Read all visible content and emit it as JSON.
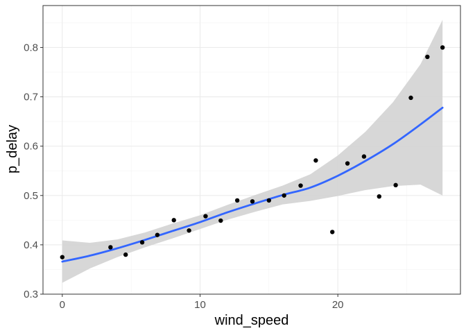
{
  "chart_data": {
    "type": "scatter",
    "title": "",
    "xlabel": "wind_speed",
    "ylabel": "p_delay",
    "xlim": [
      -1.4,
      28.9
    ],
    "ylim": [
      0.3,
      0.885
    ],
    "x_ticks": [
      0,
      10,
      20
    ],
    "x_tick_labels": [
      "0",
      "10",
      "20"
    ],
    "y_ticks": [
      0.3,
      0.4,
      0.5,
      0.6,
      0.7,
      0.8
    ],
    "y_tick_labels": [
      "0.3",
      "0.4",
      "0.5",
      "0.6",
      "0.7",
      "0.8"
    ],
    "grid": true,
    "legend": "none",
    "colors": {
      "points": "#000000",
      "smooth_line": "#3366ff",
      "confidence_band": "#d3d3d3",
      "grid_major": "#ebebeb",
      "grid_minor": "#f3f3f3",
      "panel_border": "#333333"
    },
    "points": [
      {
        "x": 0.0,
        "y": 0.375
      },
      {
        "x": 3.5,
        "y": 0.395
      },
      {
        "x": 4.6,
        "y": 0.38
      },
      {
        "x": 5.8,
        "y": 0.405
      },
      {
        "x": 6.9,
        "y": 0.42
      },
      {
        "x": 8.1,
        "y": 0.45
      },
      {
        "x": 9.2,
        "y": 0.429
      },
      {
        "x": 10.4,
        "y": 0.458
      },
      {
        "x": 11.5,
        "y": 0.449
      },
      {
        "x": 12.7,
        "y": 0.49
      },
      {
        "x": 13.8,
        "y": 0.488
      },
      {
        "x": 15.0,
        "y": 0.49
      },
      {
        "x": 16.1,
        "y": 0.5
      },
      {
        "x": 17.3,
        "y": 0.52
      },
      {
        "x": 18.4,
        "y": 0.571
      },
      {
        "x": 19.6,
        "y": 0.426
      },
      {
        "x": 20.7,
        "y": 0.565
      },
      {
        "x": 21.9,
        "y": 0.579
      },
      {
        "x": 23.0,
        "y": 0.498
      },
      {
        "x": 24.2,
        "y": 0.521
      },
      {
        "x": 25.3,
        "y": 0.698
      },
      {
        "x": 26.5,
        "y": 0.781
      },
      {
        "x": 27.6,
        "y": 0.8
      }
    ],
    "smooth": {
      "method": "loess",
      "x": [
        0.0,
        2.0,
        4.0,
        6.0,
        8.0,
        10.0,
        12.0,
        14.0,
        16.0,
        18.0,
        20.0,
        22.0,
        24.0,
        26.0,
        27.6
      ],
      "y": [
        0.366,
        0.378,
        0.393,
        0.41,
        0.428,
        0.446,
        0.466,
        0.484,
        0.501,
        0.516,
        0.54,
        0.57,
        0.604,
        0.644,
        0.678
      ],
      "lower": [
        0.323,
        0.352,
        0.375,
        0.395,
        0.413,
        0.432,
        0.451,
        0.467,
        0.482,
        0.489,
        0.499,
        0.511,
        0.519,
        0.522,
        0.5
      ],
      "upper": [
        0.409,
        0.404,
        0.411,
        0.425,
        0.443,
        0.46,
        0.481,
        0.501,
        0.52,
        0.543,
        0.581,
        0.629,
        0.689,
        0.766,
        0.856
      ]
    }
  }
}
